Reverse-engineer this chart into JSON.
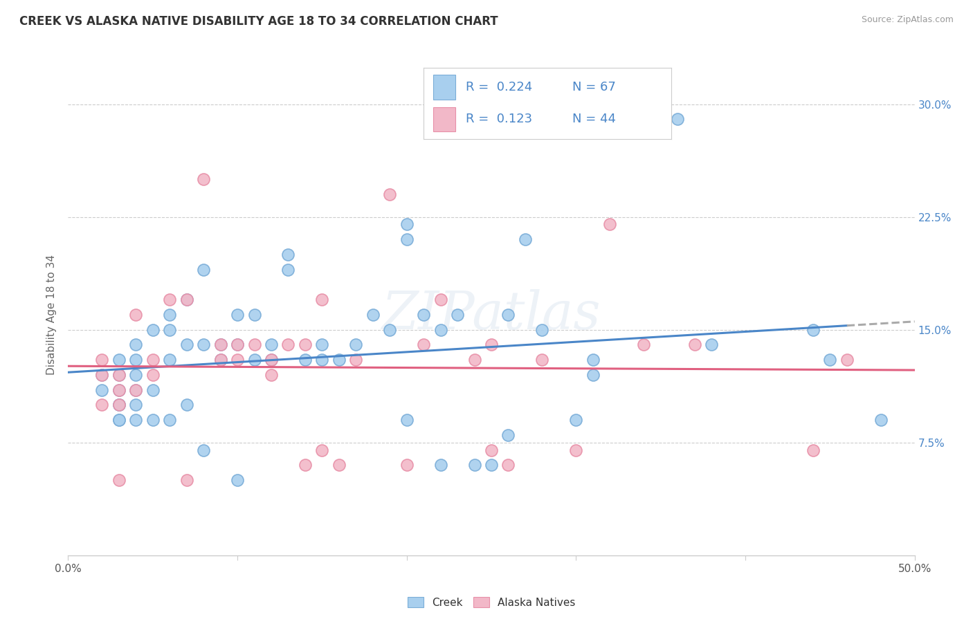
{
  "title": "CREEK VS ALASKA NATIVE DISABILITY AGE 18 TO 34 CORRELATION CHART",
  "source": "Source: ZipAtlas.com",
  "ylabel": "Disability Age 18 to 34",
  "xlim": [
    0.0,
    0.5
  ],
  "ylim": [
    0.0,
    0.32
  ],
  "ytick_positions": [
    0.075,
    0.15,
    0.225,
    0.3
  ],
  "ytick_labels": [
    "7.5%",
    "15.0%",
    "22.5%",
    "30.0%"
  ],
  "creek_color": "#A8CFEE",
  "alaska_color": "#F2B8C8",
  "creek_edge_color": "#7AADD8",
  "alaska_edge_color": "#E890A8",
  "creek_line_color": "#4A86C8",
  "alaska_line_color": "#E06080",
  "trend_extension_color": "#AAAAAA",
  "legend_R1": "0.224",
  "legend_N1": "67",
  "legend_R2": "0.123",
  "legend_N2": "44",
  "legend_text_color": "#4A86C8",
  "watermark": "ZIPatlas",
  "creek_x": [
    0.02,
    0.02,
    0.03,
    0.03,
    0.03,
    0.03,
    0.03,
    0.03,
    0.03,
    0.04,
    0.04,
    0.04,
    0.04,
    0.04,
    0.04,
    0.05,
    0.05,
    0.05,
    0.06,
    0.06,
    0.06,
    0.06,
    0.07,
    0.07,
    0.07,
    0.08,
    0.08,
    0.08,
    0.09,
    0.09,
    0.1,
    0.1,
    0.1,
    0.11,
    0.11,
    0.12,
    0.12,
    0.13,
    0.13,
    0.14,
    0.15,
    0.15,
    0.16,
    0.17,
    0.18,
    0.19,
    0.2,
    0.2,
    0.2,
    0.21,
    0.22,
    0.22,
    0.23,
    0.24,
    0.25,
    0.26,
    0.26,
    0.27,
    0.28,
    0.3,
    0.31,
    0.31,
    0.36,
    0.38,
    0.44,
    0.45,
    0.48
  ],
  "creek_y": [
    0.12,
    0.11,
    0.13,
    0.12,
    0.11,
    0.1,
    0.1,
    0.09,
    0.09,
    0.14,
    0.13,
    0.12,
    0.11,
    0.1,
    0.09,
    0.15,
    0.11,
    0.09,
    0.16,
    0.15,
    0.13,
    0.09,
    0.17,
    0.14,
    0.1,
    0.19,
    0.14,
    0.07,
    0.14,
    0.13,
    0.16,
    0.14,
    0.05,
    0.16,
    0.13,
    0.14,
    0.13,
    0.2,
    0.19,
    0.13,
    0.14,
    0.13,
    0.13,
    0.14,
    0.16,
    0.15,
    0.22,
    0.21,
    0.09,
    0.16,
    0.15,
    0.06,
    0.16,
    0.06,
    0.06,
    0.16,
    0.08,
    0.21,
    0.15,
    0.09,
    0.13,
    0.12,
    0.29,
    0.14,
    0.15,
    0.13,
    0.09
  ],
  "alaska_x": [
    0.02,
    0.02,
    0.02,
    0.03,
    0.03,
    0.03,
    0.03,
    0.04,
    0.04,
    0.05,
    0.05,
    0.06,
    0.07,
    0.07,
    0.08,
    0.09,
    0.09,
    0.1,
    0.1,
    0.11,
    0.12,
    0.12,
    0.13,
    0.14,
    0.14,
    0.15,
    0.15,
    0.16,
    0.17,
    0.19,
    0.2,
    0.21,
    0.22,
    0.24,
    0.25,
    0.25,
    0.26,
    0.28,
    0.3,
    0.32,
    0.34,
    0.37,
    0.44,
    0.46
  ],
  "alaska_y": [
    0.13,
    0.12,
    0.1,
    0.12,
    0.11,
    0.1,
    0.05,
    0.16,
    0.11,
    0.13,
    0.12,
    0.17,
    0.17,
    0.05,
    0.25,
    0.14,
    0.13,
    0.14,
    0.13,
    0.14,
    0.13,
    0.12,
    0.14,
    0.14,
    0.06,
    0.17,
    0.07,
    0.06,
    0.13,
    0.24,
    0.06,
    0.14,
    0.17,
    0.13,
    0.14,
    0.07,
    0.06,
    0.13,
    0.07,
    0.22,
    0.14,
    0.14,
    0.07,
    0.13
  ],
  "background_color": "#FFFFFF",
  "grid_color": "#CCCCCC"
}
